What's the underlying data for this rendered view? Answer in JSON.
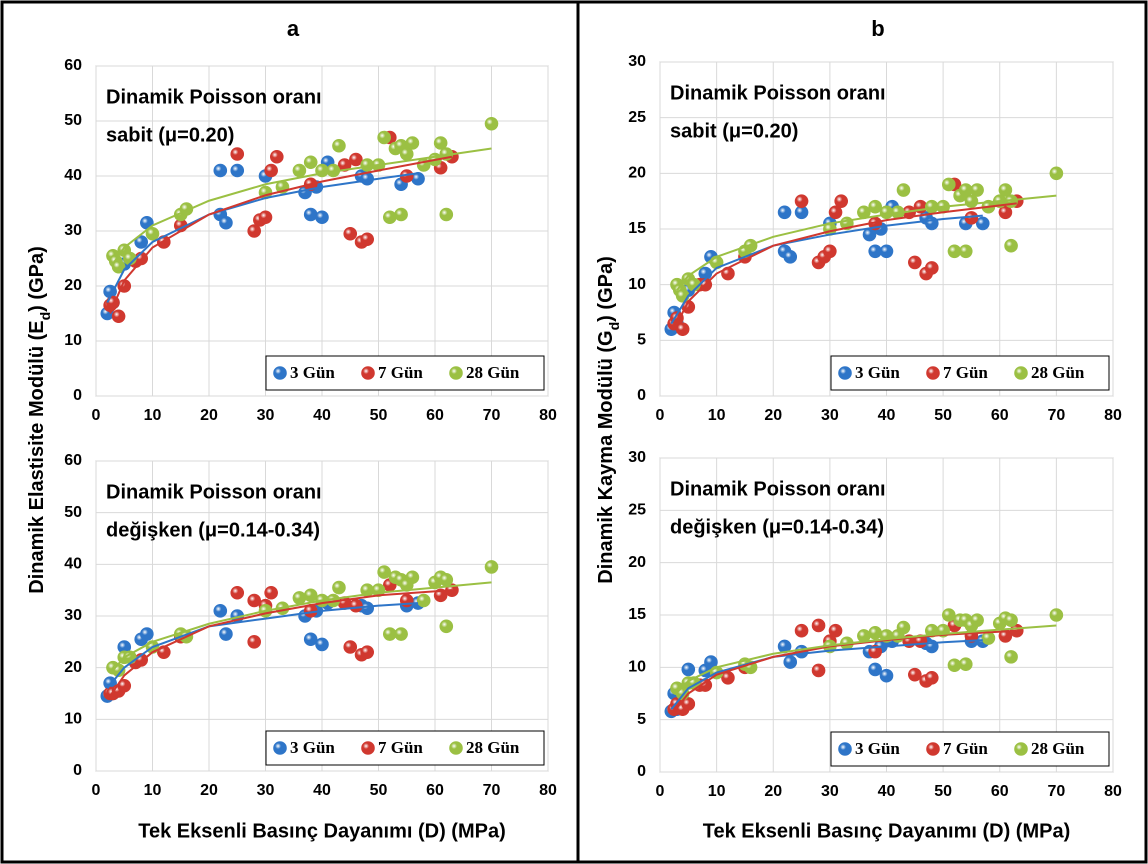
{
  "chart_data": [
    {
      "type": "scatter",
      "title": "a",
      "ylabel": [
        "Dinamik Elastisite Modülü (E",
        "d",
        ") (GPa)"
      ],
      "annotations": [
        "Dinamik Poisson oranı",
        "sabit (μ=0.20)"
      ],
      "xlim": [
        0,
        80
      ],
      "xticks": [
        0,
        10,
        20,
        30,
        40,
        50,
        60,
        70,
        80
      ],
      "ylim": [
        0,
        60
      ],
      "yticks": [
        0,
        10,
        20,
        30,
        40,
        50,
        60
      ],
      "grid": true,
      "legend": "lower right",
      "series": [
        {
          "name": "3 Gün",
          "color": "#2e75c8",
          "x": [
            2,
            2.5,
            3,
            5,
            8,
            9,
            22,
            22,
            23,
            25,
            30,
            37,
            38,
            39,
            40,
            41,
            47,
            48,
            54,
            57
          ],
          "values": [
            15,
            19,
            17,
            24,
            28,
            31.5,
            41,
            33,
            31.5,
            41,
            40,
            37,
            33,
            38,
            32.5,
            42.5,
            40,
            39.5,
            38.5,
            39.5
          ],
          "trend_x": [
            2,
            5,
            10,
            20,
            30,
            40,
            50,
            57
          ],
          "trend_values": [
            17,
            23,
            28,
            33,
            36,
            38,
            39.5,
            40.5
          ]
        },
        {
          "name": "7 Gün",
          "color": "#d0382f",
          "x": [
            2.5,
            3,
            4,
            5,
            7,
            8,
            12,
            15,
            25,
            28,
            29,
            30,
            32,
            31,
            38,
            44,
            45,
            46,
            47,
            48,
            52,
            55,
            61,
            63
          ],
          "values": [
            16.5,
            17,
            14.5,
            20,
            24.5,
            25,
            28,
            31,
            44,
            30,
            32,
            32.5,
            43.5,
            41,
            38.5,
            42,
            29.5,
            43,
            28,
            28.5,
            47,
            40,
            41.5,
            43.5
          ],
          "trend_x": [
            2.5,
            5,
            10,
            20,
            30,
            40,
            50,
            63
          ],
          "trend_values": [
            15,
            21,
            27,
            33,
            36.5,
            39,
            41,
            43.5
          ]
        },
        {
          "name": "28 Gün",
          "color": "#9bc043",
          "x": [
            3,
            3.5,
            4,
            5,
            6,
            10,
            15,
            16,
            30,
            33,
            36,
            38,
            40,
            42,
            43,
            48,
            50,
            51,
            52,
            53,
            54,
            54,
            55,
            56,
            58,
            60,
            61,
            62,
            62,
            70
          ],
          "values": [
            25.5,
            24.5,
            23.5,
            26.5,
            25,
            29.5,
            33,
            34,
            37,
            38,
            41,
            42.5,
            41,
            41,
            45.5,
            42,
            42,
            47,
            32.5,
            45,
            33,
            45.5,
            44,
            46,
            42,
            43,
            46,
            44,
            33,
            49.5
          ],
          "trend_x": [
            3,
            5,
            10,
            20,
            30,
            40,
            50,
            60,
            70
          ],
          "trend_values": [
            24,
            27,
            31,
            35.5,
            38.5,
            40.5,
            42,
            43.5,
            45
          ]
        }
      ]
    },
    {
      "type": "scatter",
      "xlabel": "Tek Eksenli Basınç Dayanımı (D) (MPa)",
      "annotations": [
        "Dinamik Poisson oranı",
        "değişken (μ=0.14-0.34)"
      ],
      "xlim": [
        0,
        80
      ],
      "xticks": [
        0,
        10,
        20,
        30,
        40,
        50,
        60,
        70,
        80
      ],
      "ylim": [
        0,
        60
      ],
      "yticks": [
        0,
        10,
        20,
        30,
        40,
        50,
        60
      ],
      "grid": true,
      "legend": "lower right",
      "series": [
        {
          "name": "3 Gün",
          "color": "#2e75c8",
          "x": [
            2,
            2.5,
            3,
            5,
            8,
            9,
            22,
            23,
            25,
            37,
            38,
            39,
            40,
            41,
            47,
            48,
            55,
            57
          ],
          "values": [
            14.5,
            17,
            15,
            24,
            25.5,
            26.5,
            31,
            26.5,
            30,
            30,
            25.5,
            31,
            24.5,
            32.5,
            32,
            31.5,
            32,
            32.5
          ],
          "trend_x": [
            2,
            5,
            10,
            20,
            30,
            40,
            50,
            57
          ],
          "trend_values": [
            16,
            20,
            24,
            28,
            29.5,
            31,
            32,
            32.5
          ]
        },
        {
          "name": "7 Gün",
          "color": "#d0382f",
          "x": [
            2.5,
            3,
            4,
            5,
            7,
            8,
            12,
            15,
            25,
            28,
            28,
            30,
            31,
            38,
            44,
            45,
            46,
            47,
            48,
            52,
            55,
            61,
            63
          ],
          "values": [
            15,
            15,
            15.5,
            16.5,
            21,
            21.5,
            23,
            26,
            34.5,
            25,
            33,
            32,
            34.5,
            31,
            32.5,
            24,
            32,
            22.5,
            23,
            36,
            33,
            34,
            35
          ],
          "trend_x": [
            2.5,
            5,
            10,
            20,
            30,
            40,
            50,
            63
          ],
          "trend_values": [
            14.5,
            18.5,
            23,
            28,
            30.5,
            32.5,
            34,
            35
          ]
        },
        {
          "name": "28 Gün",
          "color": "#9bc043",
          "x": [
            3,
            4,
            5,
            6,
            10,
            15,
            16,
            30,
            33,
            36,
            38,
            40,
            42,
            43,
            48,
            50,
            51,
            52,
            53,
            54,
            54,
            55,
            56,
            58,
            60,
            61,
            62,
            62,
            70
          ],
          "values": [
            20,
            19.5,
            22,
            22,
            24,
            26.5,
            26,
            31,
            31.5,
            33.5,
            34,
            33,
            33,
            35.5,
            35,
            35,
            38.5,
            26.5,
            37.5,
            26.5,
            37,
            36,
            37.5,
            33,
            36.5,
            37.5,
            37,
            28,
            39.5
          ],
          "trend_x": [
            3,
            5,
            10,
            20,
            30,
            40,
            50,
            60,
            70
          ],
          "trend_values": [
            19.5,
            22,
            25,
            28.5,
            31,
            33,
            34.5,
            35.5,
            36.5
          ]
        }
      ]
    },
    {
      "type": "scatter",
      "title": "b",
      "ylabel": [
        "Dinamik Kayma Modülü (G",
        "d",
        ") (GPa)"
      ],
      "annotations": [
        "Dinamik Poisson oranı",
        "sabit (μ=0.20)"
      ],
      "xlim": [
        0,
        80
      ],
      "xticks": [
        0,
        10,
        20,
        30,
        40,
        50,
        60,
        70,
        80
      ],
      "ylim": [
        0,
        30
      ],
      "yticks": [
        0,
        5,
        10,
        15,
        20,
        25,
        30
      ],
      "grid": true,
      "legend": "lower right",
      "series": [
        {
          "name": "3 Gün",
          "color": "#2e75c8",
          "x": [
            2,
            2.5,
            3,
            5,
            8,
            9,
            22,
            22,
            23,
            25,
            30,
            37,
            38,
            39,
            40,
            41,
            47,
            48,
            54,
            57
          ],
          "values": [
            6,
            7.5,
            6.5,
            9.5,
            11,
            12.5,
            16.5,
            13,
            12.5,
            16.5,
            15.5,
            14.5,
            13,
            15,
            13,
            17,
            16,
            15.5,
            15.5,
            15.5
          ],
          "trend_x": [
            2,
            5,
            10,
            20,
            30,
            40,
            50,
            57
          ],
          "trend_values": [
            6.5,
            9,
            11.5,
            13.5,
            14.5,
            15.3,
            15.9,
            16.2
          ]
        },
        {
          "name": "7 Gün",
          "color": "#d0382f",
          "x": [
            2.5,
            3,
            4,
            5,
            7,
            8,
            12,
            15,
            25,
            28,
            29,
            30,
            32,
            31,
            38,
            44,
            45,
            46,
            47,
            48,
            52,
            55,
            61,
            63
          ],
          "values": [
            6.5,
            7,
            6,
            8,
            10,
            10,
            11,
            12.5,
            17.5,
            12,
            12.5,
            13,
            17.5,
            16.5,
            15.5,
            16.5,
            12,
            17,
            11,
            11.5,
            19,
            16,
            16.5,
            17.5
          ],
          "trend_x": [
            2.5,
            5,
            10,
            20,
            30,
            40,
            50,
            63
          ],
          "trend_values": [
            6,
            8.5,
            11,
            13.5,
            14.8,
            15.8,
            16.5,
            17.3
          ]
        },
        {
          "name": "28 Gün",
          "color": "#9bc043",
          "x": [
            3,
            3.5,
            4,
            5,
            6,
            10,
            15,
            16,
            30,
            33,
            36,
            38,
            40,
            42,
            43,
            48,
            50,
            51,
            52,
            53,
            54,
            54,
            55,
            56,
            58,
            60,
            61,
            62,
            62,
            70
          ],
          "values": [
            10,
            9.5,
            9,
            10.5,
            10,
            12,
            13,
            13.5,
            15,
            15.5,
            16.5,
            17,
            16.5,
            16.5,
            18.5,
            17,
            17,
            19,
            13,
            18,
            13,
            18.5,
            17.5,
            18.5,
            17,
            17.5,
            18.5,
            17.5,
            13.5,
            20
          ],
          "trend_x": [
            3,
            5,
            10,
            20,
            30,
            40,
            50,
            60,
            70
          ],
          "trend_values": [
            9.5,
            10.8,
            12.5,
            14.3,
            15.5,
            16.3,
            17,
            17.5,
            18
          ]
        }
      ]
    },
    {
      "type": "scatter",
      "xlabel": "Tek Eksenli Basınç Dayanımı (D) (MPa)",
      "annotations": [
        "Dinamik Poisson oranı",
        "değişken (μ=0.14-0.34)"
      ],
      "xlim": [
        0,
        80
      ],
      "xticks": [
        0,
        10,
        20,
        30,
        40,
        50,
        60,
        70,
        80
      ],
      "ylim": [
        0,
        30
      ],
      "yticks": [
        0,
        5,
        10,
        15,
        20,
        25,
        30
      ],
      "grid": true,
      "legend": "lower right",
      "series": [
        {
          "name": "3 Gün",
          "color": "#2e75c8",
          "x": [
            2,
            2.5,
            3,
            5,
            8,
            9,
            22,
            23,
            25,
            37,
            38,
            39,
            40,
            41,
            47,
            48,
            55,
            57
          ],
          "values": [
            5.8,
            7.5,
            6,
            9.8,
            9.7,
            10.5,
            12,
            10.5,
            11.5,
            11.5,
            9.8,
            12,
            9.2,
            12.5,
            12.3,
            12,
            12.5,
            12.5
          ],
          "trend_x": [
            2,
            5,
            10,
            20,
            30,
            40,
            50,
            57
          ],
          "trend_values": [
            6,
            8,
            9.5,
            11,
            11.6,
            12,
            12.4,
            12.6
          ]
        },
        {
          "name": "7 Gün",
          "color": "#d0382f",
          "x": [
            2.5,
            3,
            4,
            5,
            7,
            8,
            12,
            15,
            25,
            28,
            28,
            30,
            31,
            38,
            44,
            45,
            46,
            47,
            48,
            52,
            55,
            61,
            63
          ],
          "values": [
            6,
            6.5,
            6,
            6.5,
            8.3,
            8.3,
            9,
            10,
            13.5,
            9.7,
            14,
            12.5,
            13.5,
            11.5,
            12.5,
            9.3,
            12.5,
            8.7,
            9,
            14,
            13,
            13,
            13.5
          ],
          "trend_x": [
            2.5,
            5,
            10,
            20,
            30,
            40,
            50,
            63
          ],
          "trend_values": [
            5.8,
            7.5,
            9.3,
            11,
            12,
            12.6,
            13.1,
            13.5
          ]
        },
        {
          "name": "28 Gün",
          "color": "#9bc043",
          "x": [
            3,
            4,
            5,
            6,
            10,
            15,
            16,
            30,
            33,
            36,
            38,
            40,
            42,
            43,
            48,
            50,
            51,
            52,
            53,
            54,
            54,
            55,
            56,
            58,
            60,
            61,
            62,
            62,
            70
          ],
          "values": [
            8,
            7.5,
            8.5,
            8.5,
            9.5,
            10.3,
            10,
            12,
            12.3,
            13,
            13.3,
            13,
            13,
            13.8,
            13.5,
            13.5,
            15,
            10.2,
            14.5,
            10.3,
            14.5,
            14,
            14.5,
            12.8,
            14.2,
            14.7,
            14.5,
            11,
            15
          ],
          "trend_x": [
            3,
            5,
            10,
            20,
            30,
            40,
            50,
            60,
            70
          ],
          "trend_values": [
            7.6,
            8.7,
            10,
            11.3,
            12.1,
            12.7,
            13.2,
            13.6,
            14
          ]
        }
      ]
    }
  ]
}
